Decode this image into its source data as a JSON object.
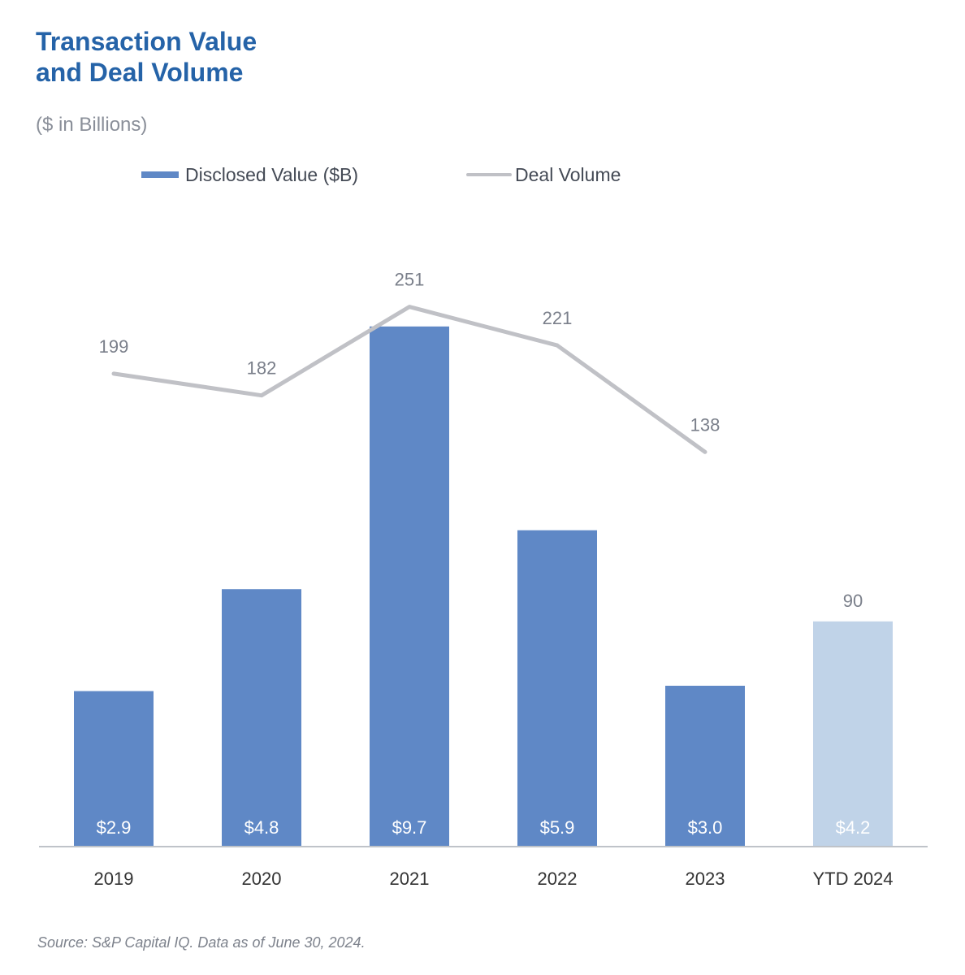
{
  "title_line1": "Transaction Value",
  "title_line2": "and Deal Volume",
  "subtitle": "($ in Billions)",
  "source": "Source: S&P Capital IQ. Data as of June 30, 2024.",
  "colors": {
    "title": "#2563a8",
    "bar": "#5f88c6",
    "bar_ytd": "#c0d3e8",
    "line": "#c0c1c6",
    "line_label": "#7a7f8a",
    "axis_label": "#333333"
  },
  "chart_data": {
    "type": "bar",
    "categories": [
      "2019",
      "2020",
      "2021",
      "2022",
      "2023",
      "YTD 2024"
    ],
    "series": [
      {
        "name": "Disclosed Value ($B)",
        "type": "bar",
        "values": [
          2.9,
          4.8,
          9.7,
          5.9,
          3.0,
          4.2
        ],
        "labels": [
          "$2.9",
          "$4.8",
          "$9.7",
          "$5.9",
          "$3.0",
          "$4.2"
        ]
      },
      {
        "name": "Deal Volume",
        "type": "line",
        "values": [
          199,
          182,
          251,
          221,
          138,
          90
        ],
        "labels": [
          "199",
          "182",
          "251",
          "221",
          "138",
          "90"
        ]
      }
    ],
    "legend": "top",
    "grid": false,
    "xlabel": "",
    "ylabel": ""
  }
}
